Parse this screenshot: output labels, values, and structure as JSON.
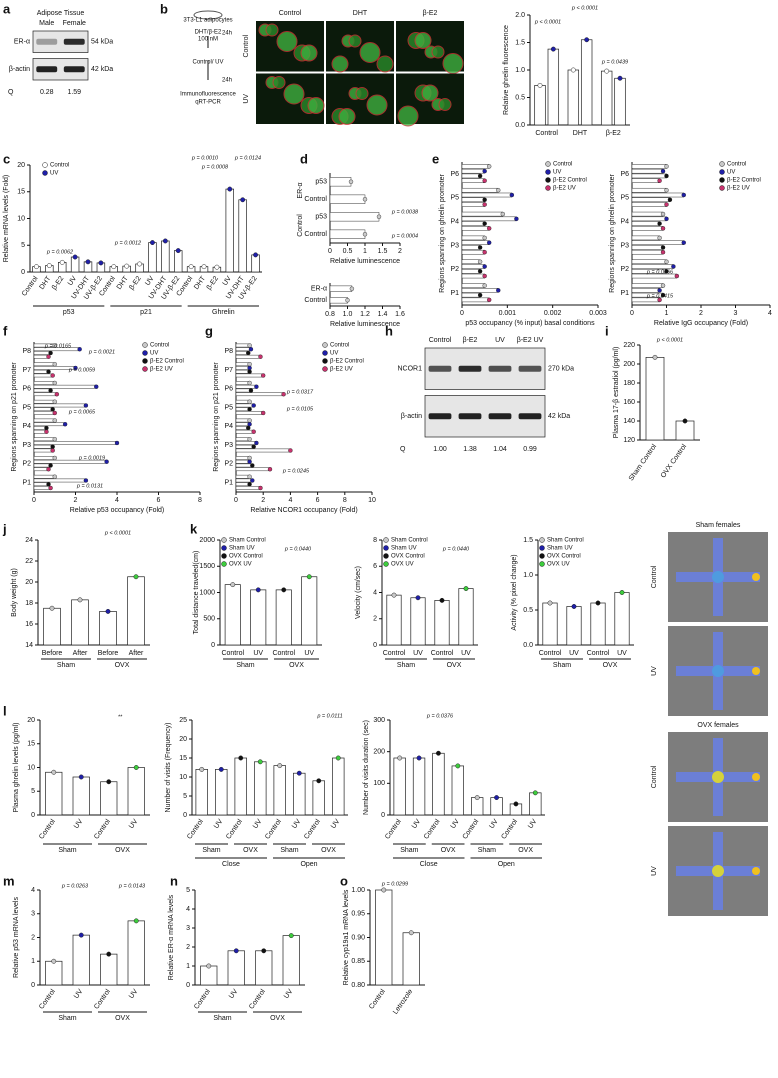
{
  "chart_data": [
    {
      "type": "blot",
      "label": "a",
      "title": "Adipose Tissue",
      "lanes": [
        "Male",
        "Female"
      ],
      "rows": [
        {
          "name": "ER-α",
          "size": "54 kDa"
        },
        {
          "name": "β-actin",
          "size": "42 kDa"
        }
      ],
      "q_label": "Q",
      "q": [
        0.28,
        1.59
      ]
    },
    {
      "type": "diagram",
      "label": "b",
      "steps": [
        "3T3-L1 adipocytes",
        "DHT/β-E2",
        "100 nM",
        "24h",
        "Control/ UV",
        "24h",
        "Immunofluorescence",
        "qRT-PCR"
      ]
    },
    {
      "type": "image",
      "columns": [
        "Control",
        "DHT",
        "β-E2"
      ],
      "rows": [
        "Control",
        "UV"
      ]
    },
    {
      "type": "bar",
      "ylabel": "Relative ghrelin fluorescence",
      "categories": [
        "Control",
        "DHT",
        "β-E2"
      ],
      "series": [
        {
          "color": "#ffffff",
          "values": [
            0.72,
            1.0,
            0.98
          ]
        },
        {
          "color": "#1f1fa8",
          "values": [
            1.38,
            1.55,
            0.85
          ]
        }
      ],
      "ylim": [
        0,
        2
      ],
      "yticks": [
        {
          "value": 0,
          "label": "0.0"
        },
        0.5,
        {
          "value": 1,
          "label": "1.0"
        },
        1.5,
        {
          "value": 2,
          "label": "2.0"
        }
      ],
      "annotations": [
        "p < 0.0001",
        "p < 0.0001",
        "p = 0.0439"
      ]
    },
    {
      "type": "bar",
      "label": "c",
      "ylabel": "Relative mRNA levels (Fold)",
      "categories": [
        "Control",
        "DHT",
        "β-E2",
        "UV",
        "UV-DHT",
        "UV-β-E2",
        "Control",
        "DHT",
        "β-E2",
        "UV",
        "UV-DHT",
        "UV-β-E2",
        "Control",
        "DHT",
        "β-E2",
        "UV",
        "UV-DHT",
        "UV-β-E2"
      ],
      "values": [
        1,
        1.2,
        1.8,
        2.8,
        1.9,
        1.7,
        1,
        1.1,
        1.5,
        5.5,
        5.8,
        4,
        1,
        1,
        0.9,
        15.5,
        13.5,
        3.2
      ],
      "colors": [
        "#ffffff",
        "#ffffff",
        "#ffffff",
        "#1f1fa8",
        "#1f1fa8",
        "#1f1fa8",
        "#ffffff",
        "#ffffff",
        "#ffffff",
        "#1f1fa8",
        "#1f1fa8",
        "#1f1fa8",
        "#ffffff",
        "#ffffff",
        "#ffffff",
        "#1f1fa8",
        "#1f1fa8",
        "#1f1fa8"
      ],
      "groups": [
        "p53",
        "p21",
        "Ghrelin"
      ],
      "legend": [
        {
          "name": "Control",
          "color": "#ffffff"
        },
        {
          "name": "UV",
          "color": "#1f1fa8"
        }
      ],
      "ylim": [
        0,
        20
      ],
      "yticks": [
        0,
        5,
        10,
        15,
        20
      ],
      "annotations": [
        "p = 0.0062",
        "p = 0.0012",
        "p = 0.0010",
        "p = 0.0124",
        "p = 0.0008"
      ]
    },
    {
      "type": "hbar",
      "label": "d",
      "xlabel": "Relative luminescence",
      "categories": [
        "Control",
        "p53",
        "Control",
        "p53"
      ],
      "groups": [
        "Control",
        "ER-α"
      ],
      "values": [
        1.0,
        1.4,
        1.0,
        0.6
      ],
      "xlim": [
        0,
        2
      ],
      "xticks": [
        0,
        0.5,
        1,
        1.5,
        2
      ],
      "annotations": [
        "p = 0.0038",
        "p = 0.0004"
      ]
    },
    {
      "type": "hbar",
      "xlabel": "Relative luminescence",
      "categories": [
        "Control",
        "ER-α"
      ],
      "values": [
        1.0,
        1.05
      ],
      "xlim": [
        0.8,
        1.6
      ],
      "xticks": [
        0.8,
        {
          "value": 1,
          "label": "1.0"
        },
        1.2,
        1.4,
        1.6
      ]
    },
    {
      "type": "hbar",
      "label": "e",
      "xlabel": "p53 occupancy (% input) basal conditions",
      "ylabel": "Regions spanning on ghrelin promoter",
      "categories": [
        "P1",
        "P2",
        "P3",
        "P4",
        "P5",
        "P6"
      ],
      "series": [
        {
          "name": "Control",
          "color": "#c8c8c8",
          "values": [
            0.0005,
            0.0004,
            0.0005,
            0.0009,
            0.0008,
            0.0006
          ]
        },
        {
          "name": "UV",
          "color": "#1f1fa8",
          "values": [
            0.0008,
            0.0005,
            0.0006,
            0.0012,
            0.0011,
            0.0005
          ]
        },
        {
          "name": "β-E2 Control",
          "color": "#111111",
          "values": [
            0.0004,
            0.0004,
            0.0004,
            0.0005,
            0.0005,
            0.0004
          ]
        },
        {
          "name": "β-E2 UV",
          "color": "#c8336e",
          "values": [
            0.0006,
            0.0005,
            0.0005,
            0.0006,
            0.0005,
            0.0005
          ]
        }
      ],
      "xlim": [
        0,
        0.003
      ],
      "xticks": [
        0,
        0.001,
        0.002,
        0.003
      ]
    },
    {
      "type": "hbar",
      "xlabel": "Relative IgG occupancy (Fold)",
      "ylabel": "Regions spanning on ghrelin promoter",
      "categories": [
        "P1",
        "P2",
        "P3",
        "P4",
        "P5",
        "P6"
      ],
      "series": [
        {
          "name": "Control",
          "color": "#c8c8c8",
          "values": [
            0.9,
            1.0,
            0.8,
            0.9,
            1.0,
            1.0
          ]
        },
        {
          "name": "UV",
          "color": "#1f1fa8",
          "values": [
            0.8,
            1.2,
            1.5,
            1.0,
            1.5,
            0.9
          ]
        },
        {
          "name": "β-E2 Control",
          "color": "#111111",
          "values": [
            0.9,
            1.0,
            0.9,
            0.8,
            1.1,
            1.0
          ]
        },
        {
          "name": "β-E2 UV",
          "color": "#c8336e",
          "values": [
            0.8,
            1.3,
            0.9,
            0.9,
            1.0,
            0.8
          ]
        }
      ],
      "xlim": [
        0,
        4
      ],
      "xticks": [
        0,
        1,
        2,
        3,
        4
      ],
      "annotations": [
        "p = 0.0466",
        "p = 0.0415"
      ]
    },
    {
      "type": "hbar",
      "label": "f",
      "xlabel": "Relative p53 occupancy (Fold)",
      "ylabel": "Regions spanning on p21 promoter",
      "categories": [
        "P1",
        "P2",
        "P3",
        "P4",
        "P5",
        "P6",
        "P7",
        "P8"
      ],
      "series": [
        {
          "name": "Control",
          "color": "#c8c8c8",
          "values": [
            1,
            1,
            1,
            1,
            1,
            1,
            1,
            1
          ]
        },
        {
          "name": "UV",
          "color": "#1f1fa8",
          "values": [
            2.5,
            3.5,
            4,
            1.5,
            2.5,
            3,
            2,
            2.2
          ]
        },
        {
          "name": "β-E2 Control",
          "color": "#111111",
          "values": [
            0.7,
            0.8,
            0.9,
            0.6,
            0.9,
            0.8,
            0.7,
            0.8
          ]
        },
        {
          "name": "β-E2 UV",
          "color": "#c8336e",
          "values": [
            0.8,
            0.7,
            0.9,
            0.6,
            1.0,
            1.1,
            0.9,
            0.7
          ]
        }
      ],
      "xlim": [
        0,
        8
      ],
      "xticks": [
        0,
        2,
        4,
        6,
        8
      ],
      "annotations": [
        "p = 0.0165",
        "p = 0.0021",
        "p = 0.0059",
        "p = 0.0065",
        "p = 0.0019",
        "p = 0.0131"
      ]
    },
    {
      "type": "hbar",
      "label": "g",
      "xlabel": "Relative NCOR1 occupancy (Fold)",
      "ylabel": "Regions spanning on p21 promoter",
      "categories": [
        "P1",
        "P2",
        "P3",
        "P4",
        "P5",
        "P6",
        "P7",
        "P8"
      ],
      "series": [
        {
          "name": "Control",
          "color": "#c8c8c8",
          "values": [
            1,
            1,
            1,
            1,
            1,
            1,
            1,
            1
          ]
        },
        {
          "name": "UV",
          "color": "#1f1fa8",
          "values": [
            1.2,
            1.0,
            1.5,
            1.0,
            1.3,
            1.5,
            1.0,
            1.1
          ]
        },
        {
          "name": "β-E2 Control",
          "color": "#111111",
          "values": [
            1.0,
            1.2,
            1.3,
            0.9,
            1.0,
            1.1,
            1.0,
            0.9
          ]
        },
        {
          "name": "β-E2 UV",
          "color": "#c8336e",
          "values": [
            1.8,
            2.5,
            4,
            1.3,
            2.0,
            3.5,
            2.0,
            1.8
          ]
        }
      ],
      "xlim": [
        0,
        10
      ],
      "xticks": [
        0,
        2,
        4,
        6,
        8,
        10
      ],
      "annotations": [
        "p = 0.0317",
        "p = 0.0105",
        "p = 0.0245"
      ]
    },
    {
      "type": "blot",
      "label": "h",
      "lanes": [
        "Control",
        "β-E2",
        "UV",
        "β-E2 UV"
      ],
      "rows": [
        {
          "name": "NCOR1",
          "size": "270 kDa"
        },
        {
          "name": "β-actin",
          "size": "42 kDa"
        }
      ],
      "q_label": "Q",
      "q": [
        1,
        1.38,
        1.04,
        0.99
      ],
      "q_labels": [
        "1.00",
        "1.38",
        "1.04",
        "0.99"
      ]
    },
    {
      "type": "bar",
      "label": "i",
      "ylabel": "Plasma 17-β estradiol (pg/ml)",
      "categories": [
        "Sham Control",
        "OVX Control"
      ],
      "values": [
        207,
        140
      ],
      "colors": [
        "#c8c8c8",
        "#111111"
      ],
      "ylim": [
        120,
        220
      ],
      "yticks": [
        120,
        140,
        160,
        180,
        200,
        220
      ],
      "annotations": [
        "p < 0.0001"
      ]
    },
    {
      "type": "bar",
      "label": "j",
      "ylabel": "Body weight (g)",
      "categories": [
        "Before",
        "After",
        "Before",
        "After"
      ],
      "groups": [
        "Sham",
        "OVX"
      ],
      "values": [
        17.5,
        18.3,
        17.2,
        20.5
      ],
      "colors": [
        "#c8c8c8",
        "#c8c8c8",
        "#1f1fa8",
        "#3dcc3d"
      ],
      "ylim": [
        14,
        24
      ],
      "yticks": [
        14,
        16,
        18,
        20,
        22,
        24
      ],
      "annotations": [
        "p < 0.0001"
      ]
    },
    {
      "type": "bar",
      "label": "k",
      "ylabel": "Total distance traveled(cm)",
      "categories": [
        "Control",
        "UV",
        "Control",
        "UV"
      ],
      "groups": [
        "Sham",
        "OVX"
      ],
      "values": [
        1150,
        1050,
        1050,
        1300
      ],
      "colors": [
        "#c8c8c8",
        "#1f1fa8",
        "#111111",
        "#3dcc3d"
      ],
      "legend": [
        {
          "name": "Sham Control",
          "color": "#c8c8c8"
        },
        {
          "name": "Sham UV",
          "color": "#1f1fa8"
        },
        {
          "name": "OVX Control",
          "color": "#111111"
        },
        {
          "name": "OVX UV",
          "color": "#3dcc3d"
        }
      ],
      "ylim": [
        0,
        2000
      ],
      "yticks": [
        0,
        500,
        1000,
        1500,
        2000
      ],
      "annotations": [
        "p = 0.0440"
      ]
    },
    {
      "type": "bar",
      "ylabel": "Velocity (cm/sec)",
      "categories": [
        "Control",
        "UV",
        "Control",
        "UV"
      ],
      "groups": [
        "Sham",
        "OVX"
      ],
      "values": [
        3.8,
        3.6,
        3.4,
        4.3
      ],
      "colors": [
        "#c8c8c8",
        "#1f1fa8",
        "#111111",
        "#3dcc3d"
      ],
      "legend": [
        {
          "name": "Sham Control",
          "color": "#c8c8c8"
        },
        {
          "name": "Sham UV",
          "color": "#1f1fa8"
        },
        {
          "name": "OVX Control",
          "color": "#111111"
        },
        {
          "name": "OVX UV",
          "color": "#3dcc3d"
        }
      ],
      "ylim": [
        0,
        8
      ],
      "yticks": [
        0,
        2,
        4,
        6,
        8
      ],
      "annotations": [
        "p = 0.0440"
      ]
    },
    {
      "type": "bar",
      "ylabel": "Activity (% pixel change)",
      "categories": [
        "Control",
        "UV",
        "Control",
        "UV"
      ],
      "groups": [
        "Sham",
        "OVX"
      ],
      "values": [
        0.6,
        0.55,
        0.6,
        0.75
      ],
      "colors": [
        "#c8c8c8",
        "#1f1fa8",
        "#111111",
        "#3dcc3d"
      ],
      "legend": [
        {
          "name": "Sham Control",
          "color": "#c8c8c8"
        },
        {
          "name": "Sham UV",
          "color": "#1f1fa8"
        },
        {
          "name": "OVX Control",
          "color": "#111111"
        },
        {
          "name": "OVX UV",
          "color": "#3dcc3d"
        }
      ],
      "ylim": [
        0,
        1.5
      ],
      "yticks": [
        {
          "value": 0,
          "label": "0.0"
        },
        0.5,
        {
          "value": 1,
          "label": "1.0"
        },
        1.5
      ]
    },
    {
      "type": "maze",
      "sections": [
        {
          "title": "Sham females",
          "rows": [
            "Control",
            "UV"
          ]
        },
        {
          "title": "OVX females",
          "rows": [
            "Control",
            "UV"
          ]
        }
      ]
    },
    {
      "type": "bar",
      "label": "l",
      "ylabel": "Plasma ghrelin levels (pg/ml)",
      "categories": [
        "Control",
        "UV",
        "Control",
        "UV"
      ],
      "groups": [
        "Sham",
        "OVX"
      ],
      "values": [
        9,
        8,
        7,
        10
      ],
      "colors": [
        "#c8c8c8",
        "#1f1fa8",
        "#111111",
        "#3dcc3d"
      ],
      "ylim": [
        0,
        20
      ],
      "yticks": [
        0,
        5,
        10,
        15,
        20
      ],
      "annotations": [
        "**"
      ]
    },
    {
      "type": "bar",
      "ylabel": "Number of visits (Frequency)",
      "categories": [
        "Control",
        "UV",
        "Control",
        "UV",
        "Control",
        "UV",
        "Control",
        "UV"
      ],
      "groups": [
        "Sham",
        "OVX",
        "Sham",
        "OVX"
      ],
      "supergroups": [
        "Close",
        "Open"
      ],
      "values": [
        12,
        12,
        15,
        14,
        13,
        11,
        9,
        15
      ],
      "colors": [
        "#c8c8c8",
        "#1f1fa8",
        "#111111",
        "#3dcc3d",
        "#c8c8c8",
        "#1f1fa8",
        "#111111",
        "#3dcc3d"
      ],
      "ylim": [
        0,
        25
      ],
      "yticks": [
        0,
        5,
        10,
        15,
        20,
        25
      ],
      "annotations": [
        "p = 0.0111"
      ]
    },
    {
      "type": "bar",
      "ylabel": "Number of visits duration (sec)",
      "categories": [
        "Control",
        "UV",
        "Control",
        "UV",
        "Control",
        "UV",
        "Control",
        "UV"
      ],
      "groups": [
        "Sham",
        "OVX",
        "Sham",
        "OVX"
      ],
      "supergroups": [
        "Close",
        "Open"
      ],
      "values": [
        180,
        180,
        195,
        155,
        55,
        55,
        35,
        70
      ],
      "colors": [
        "#c8c8c8",
        "#1f1fa8",
        "#111111",
        "#3dcc3d",
        "#c8c8c8",
        "#1f1fa8",
        "#111111",
        "#3dcc3d"
      ],
      "ylim": [
        0,
        300
      ],
      "yticks": [
        0,
        100,
        200,
        300
      ],
      "annotations": [
        "p = 0.0376"
      ]
    },
    {
      "type": "bar",
      "label": "m",
      "ylabel": "Relative p53 mRNA levels",
      "categories": [
        "Control",
        "UV",
        "Control",
        "UV"
      ],
      "groups": [
        "Sham",
        "OVX"
      ],
      "values": [
        1.0,
        2.1,
        1.3,
        2.7
      ],
      "colors": [
        "#c8c8c8",
        "#1f1fa8",
        "#111111",
        "#3dcc3d"
      ],
      "ylim": [
        0,
        4
      ],
      "yticks": [
        0,
        1,
        2,
        3,
        4
      ],
      "annotations": [
        "p = 0.0263",
        "p = 0.0143"
      ]
    },
    {
      "type": "bar",
      "label": "n",
      "ylabel": "Relative ER-α mRNA levels",
      "categories": [
        "Control",
        "UV",
        "Control",
        "UV"
      ],
      "groups": [
        "Sham",
        "OVX"
      ],
      "values": [
        1.0,
        1.8,
        1.8,
        2.6
      ],
      "colors": [
        "#c8c8c8",
        "#1f1fa8",
        "#111111",
        "#3dcc3d"
      ],
      "ylim": [
        0,
        5
      ],
      "yticks": [
        0,
        1,
        2,
        3,
        4,
        5
      ]
    },
    {
      "type": "bar",
      "label": "o",
      "ylabel": "Relative cyp19a1 mRNA levels",
      "categories": [
        "Control",
        "Letrozole"
      ],
      "values": [
        1.0,
        0.91
      ],
      "colors": [
        "#c8c8c8",
        "#c8c8c8"
      ],
      "ylim": [
        0.8,
        1.0
      ],
      "yticks": [
        {
          "value": 0.8,
          "label": "0.80"
        },
        0.85,
        {
          "value": 0.9,
          "label": "0.90"
        },
        0.95,
        {
          "value": 1,
          "label": "1.00"
        }
      ],
      "annotations": [
        "p = 0.0299"
      ]
    }
  ]
}
